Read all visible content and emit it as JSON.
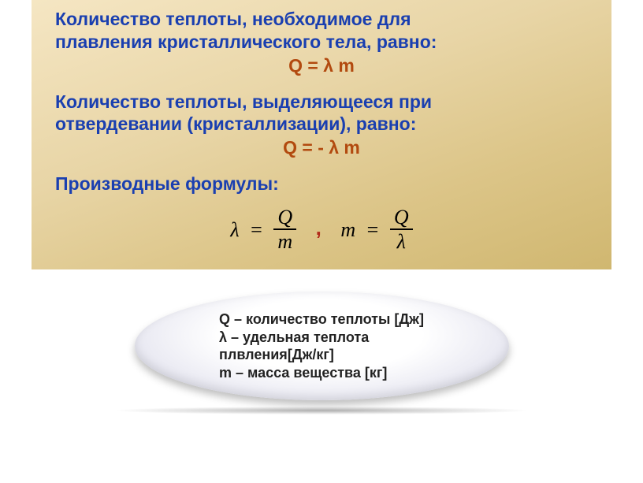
{
  "colors": {
    "headline": "#1a3fb0",
    "formula": "#b24a0f",
    "text": "#000000"
  },
  "block1": {
    "line1": "Количество теплоты, необходимое для",
    "line2": "плавления кристаллического тела, равно:",
    "formula": "Q = λ  m"
  },
  "block2": {
    "line1": "Количество теплоты, выделяющееся при",
    "line2": "отвердевании (кристаллизации), равно:",
    "formula": "Q = - λ  m"
  },
  "block3": {
    "title": "Производные формулы:"
  },
  "deriv": {
    "lhs1": "λ",
    "eq": "=",
    "num1": "Q",
    "den1": "m",
    "comma": ",",
    "lhs2": "m",
    "num2": "Q",
    "den2": "λ"
  },
  "legend": {
    "l1": "Q – количество теплоты [Дж]",
    "l2": "λ – удельная теплота",
    "l3": "плвления[Дж/кг]",
    "l4": "m – масса вещества [кг]"
  }
}
